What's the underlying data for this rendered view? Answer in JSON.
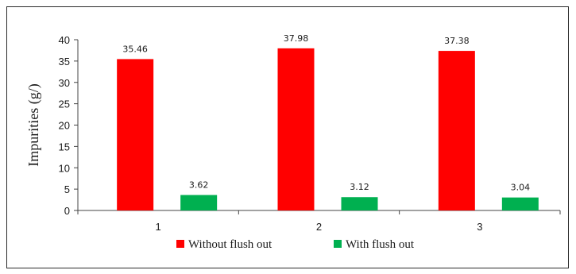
{
  "chart_data": {
    "type": "bar",
    "categories": [
      "1",
      "2",
      "3"
    ],
    "series": [
      {
        "name": "Without flush out",
        "values": [
          35.46,
          37.98,
          37.38
        ],
        "color": "#ff0000",
        "labels": [
          "35.46",
          "37.98",
          "37.38"
        ]
      },
      {
        "name": "With flush out",
        "values": [
          3.62,
          3.12,
          3.04
        ],
        "color": "#00b050",
        "labels": [
          "3.62",
          "3.12",
          "3.04"
        ]
      }
    ],
    "title": "",
    "xlabel": "",
    "ylabel": "Impurities (g/)",
    "ylim": [
      0,
      40
    ],
    "yticks": [
      0,
      5,
      10,
      15,
      20,
      25,
      30,
      35,
      40
    ],
    "grid": false,
    "legend": "bottom"
  }
}
